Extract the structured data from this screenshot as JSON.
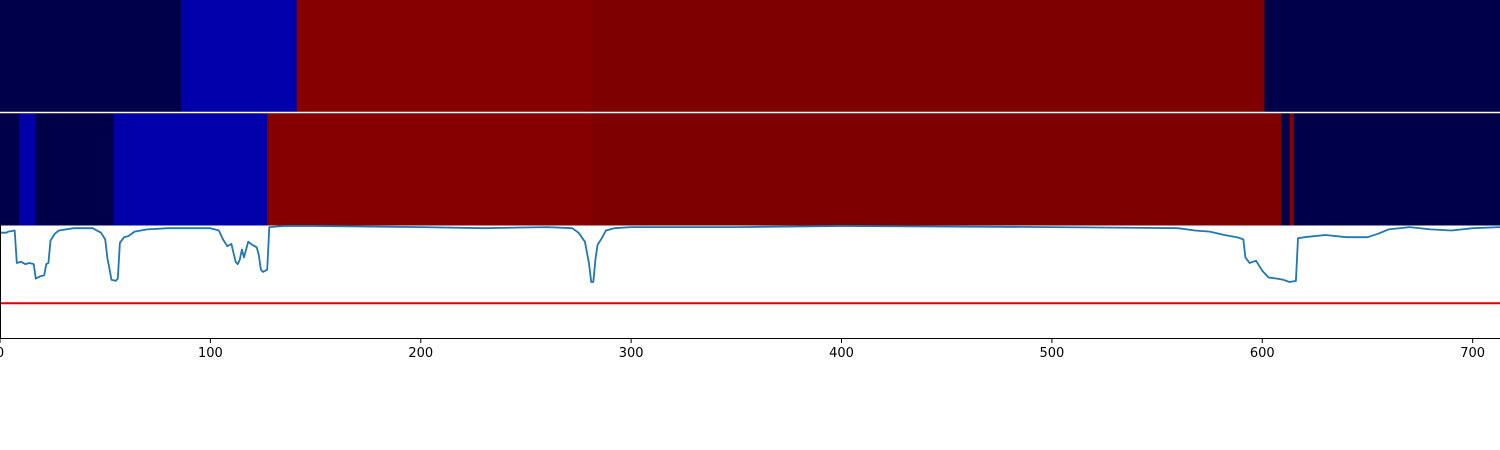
{
  "chart_data": [
    {
      "type": "heatmap",
      "xlim": [
        0,
        713
      ],
      "segments": [
        {
          "start": 0,
          "end": 86,
          "color": "#00004a"
        },
        {
          "start": 86,
          "end": 141,
          "color": "#0000aa"
        },
        {
          "start": 141,
          "end": 281,
          "color": "#870000"
        },
        {
          "start": 281,
          "end": 601,
          "color": "#7f0000"
        },
        {
          "start": 601,
          "end": 713,
          "color": "#00004a"
        }
      ]
    },
    {
      "type": "heatmap",
      "xlim": [
        0,
        713
      ],
      "segments": [
        {
          "start": 0,
          "end": 9,
          "color": "#00004a"
        },
        {
          "start": 9,
          "end": 17,
          "color": "#0000aa"
        },
        {
          "start": 17,
          "end": 54,
          "color": "#00004a"
        },
        {
          "start": 54,
          "end": 127,
          "color": "#0000aa"
        },
        {
          "start": 127,
          "end": 281,
          "color": "#870000"
        },
        {
          "start": 281,
          "end": 609,
          "color": "#7f0000"
        },
        {
          "start": 609,
          "end": 613,
          "color": "#00004a"
        },
        {
          "start": 613,
          "end": 615,
          "color": "#870000"
        },
        {
          "start": 615,
          "end": 713,
          "color": "#00004a"
        }
      ]
    },
    {
      "type": "line",
      "xlim": [
        0,
        713
      ],
      "ylim": [
        0,
        1
      ],
      "x_ticks": [
        0,
        100,
        200,
        300,
        400,
        500,
        600,
        700
      ],
      "threshold": {
        "y": 0.31,
        "color": "#dd0000"
      },
      "series": [
        {
          "color": "#1f77b4",
          "points": [
            [
              0,
              0.94
            ],
            [
              3,
              0.94
            ],
            [
              4,
              0.95
            ],
            [
              7,
              0.96
            ],
            [
              8,
              0.67
            ],
            [
              10,
              0.68
            ],
            [
              12,
              0.66
            ],
            [
              14,
              0.67
            ],
            [
              16,
              0.66
            ],
            [
              17,
              0.53
            ],
            [
              19,
              0.55
            ],
            [
              21,
              0.56
            ],
            [
              22,
              0.66
            ],
            [
              23,
              0.67
            ],
            [
              24,
              0.87
            ],
            [
              26,
              0.93
            ],
            [
              28,
              0.96
            ],
            [
              35,
              0.98
            ],
            [
              44,
              0.98
            ],
            [
              48,
              0.94
            ],
            [
              50,
              0.88
            ],
            [
              51,
              0.72
            ],
            [
              52,
              0.62
            ],
            [
              53,
              0.52
            ],
            [
              55,
              0.51
            ],
            [
              56,
              0.53
            ],
            [
              57,
              0.85
            ],
            [
              59,
              0.9
            ],
            [
              61,
              0.91
            ],
            [
              64,
              0.95
            ],
            [
              70,
              0.97
            ],
            [
              80,
              0.98
            ],
            [
              90,
              0.98
            ],
            [
              100,
              0.98
            ],
            [
              104,
              0.96
            ],
            [
              106,
              0.88
            ],
            [
              108,
              0.82
            ],
            [
              110,
              0.84
            ],
            [
              112,
              0.68
            ],
            [
              113,
              0.66
            ],
            [
              114,
              0.7
            ],
            [
              115,
              0.79
            ],
            [
              116,
              0.72
            ],
            [
              118,
              0.86
            ],
            [
              120,
              0.83
            ],
            [
              122,
              0.81
            ],
            [
              123,
              0.74
            ],
            [
              124,
              0.61
            ],
            [
              125,
              0.59
            ],
            [
              126,
              0.6
            ],
            [
              127,
              0.61
            ],
            [
              128,
              0.99
            ],
            [
              135,
              1.0
            ],
            [
              150,
              1.0
            ],
            [
              200,
              0.99
            ],
            [
              230,
              0.98
            ],
            [
              260,
              0.99
            ],
            [
              272,
              0.98
            ],
            [
              275,
              0.94
            ],
            [
              278,
              0.86
            ],
            [
              280,
              0.66
            ],
            [
              281,
              0.5
            ],
            [
              282,
              0.5
            ],
            [
              283,
              0.7
            ],
            [
              284,
              0.83
            ],
            [
              286,
              0.89
            ],
            [
              288,
              0.96
            ],
            [
              292,
              0.98
            ],
            [
              300,
              0.99
            ],
            [
              350,
              0.99
            ],
            [
              400,
              1.0
            ],
            [
              500,
              0.99
            ],
            [
              560,
              0.98
            ],
            [
              568,
              0.96
            ],
            [
              575,
              0.95
            ],
            [
              582,
              0.92
            ],
            [
              588,
              0.9
            ],
            [
              591,
              0.88
            ],
            [
              592,
              0.72
            ],
            [
              594,
              0.67
            ],
            [
              597,
              0.69
            ],
            [
              600,
              0.6
            ],
            [
              603,
              0.54
            ],
            [
              607,
              0.53
            ],
            [
              610,
              0.52
            ],
            [
              613,
              0.5
            ],
            [
              616,
              0.51
            ],
            [
              617,
              0.89
            ],
            [
              620,
              0.9
            ],
            [
              630,
              0.92
            ],
            [
              640,
              0.9
            ],
            [
              650,
              0.9
            ],
            [
              655,
              0.93
            ],
            [
              660,
              0.97
            ],
            [
              670,
              0.99
            ],
            [
              680,
              0.97
            ],
            [
              690,
              0.96
            ],
            [
              700,
              0.98
            ],
            [
              713,
              0.99
            ]
          ]
        }
      ]
    }
  ]
}
